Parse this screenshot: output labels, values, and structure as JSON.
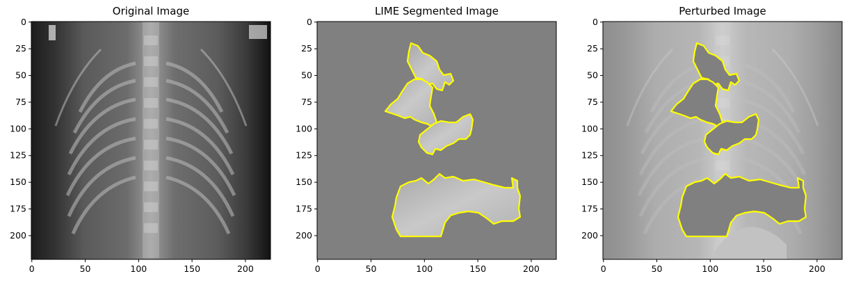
{
  "figure": {
    "panels": [
      {
        "id": "original",
        "title": "Original Image",
        "image": "chest-xray",
        "xticks": [
          "0",
          "50",
          "100",
          "150",
          "200"
        ],
        "yticks": [
          "0",
          "25",
          "50",
          "75",
          "100",
          "125",
          "150",
          "175",
          "200"
        ]
      },
      {
        "id": "segmented",
        "title": "LIME Segmented Image",
        "image": "chest-xray-segments-shown",
        "xticks": [
          "0",
          "50",
          "100",
          "150",
          "200"
        ],
        "yticks": [
          "0",
          "25",
          "50",
          "75",
          "100",
          "125",
          "150",
          "175",
          "200"
        ]
      },
      {
        "id": "perturbed",
        "title": "Perturbed Image",
        "image": "chest-xray-segments-masked",
        "xticks": [
          "0",
          "50",
          "100",
          "150",
          "200"
        ],
        "yticks": [
          "0",
          "25",
          "50",
          "75",
          "100",
          "125",
          "150",
          "175",
          "200"
        ]
      }
    ],
    "colors": {
      "boundary": "#ffff00",
      "mask_gray": "#808080",
      "background": "#ffffff",
      "axis": "#000000"
    }
  }
}
